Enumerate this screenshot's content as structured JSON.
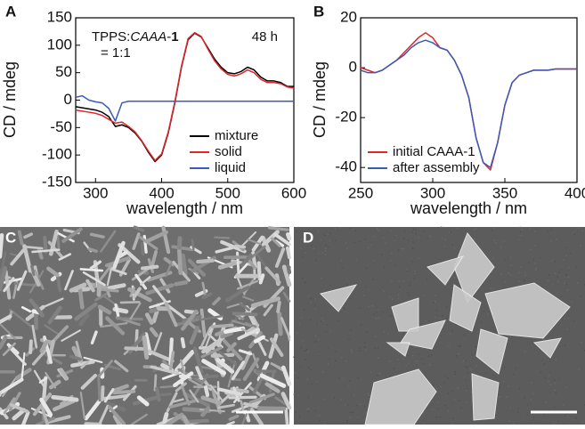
{
  "chart_data": [
    {
      "type": "line",
      "panel_label": "A",
      "x_label": "wavelength / nm",
      "y_label": "CD / mdeg",
      "annotation_parts": [
        "TPPS:",
        "CAAA",
        "-",
        "1"
      ],
      "annotation_line2": "= 1:1",
      "time_label": "48 h",
      "xlim": [
        270,
        600
      ],
      "xticks": [
        300,
        400,
        500,
        600
      ],
      "ylim": [
        -150,
        150
      ],
      "yticks": [
        -150,
        -100,
        -50,
        0,
        50,
        100,
        150
      ],
      "legend": "lower-right",
      "x": [
        270,
        280,
        290,
        300,
        310,
        320,
        330,
        340,
        350,
        360,
        370,
        380,
        390,
        400,
        410,
        420,
        430,
        440,
        450,
        460,
        470,
        480,
        490,
        500,
        510,
        520,
        530,
        540,
        550,
        560,
        570,
        580,
        590,
        600
      ],
      "series": [
        {
          "name": "mixture",
          "color": "#000000",
          "values": [
            -12,
            -14,
            -16,
            -18,
            -22,
            -30,
            -48,
            -45,
            -50,
            -60,
            -75,
            -95,
            -112,
            -100,
            -60,
            -5,
            60,
            110,
            122,
            115,
            95,
            75,
            60,
            50,
            48,
            52,
            60,
            55,
            42,
            35,
            35,
            32,
            25,
            25
          ]
        },
        {
          "name": "solid",
          "color": "#e0262b",
          "values": [
            -18,
            -20,
            -22,
            -24,
            -28,
            -35,
            -42,
            -40,
            -48,
            -58,
            -74,
            -93,
            -110,
            -98,
            -58,
            -3,
            62,
            112,
            123,
            116,
            93,
            72,
            57,
            47,
            44,
            48,
            55,
            50,
            38,
            32,
            32,
            30,
            24,
            22
          ]
        },
        {
          "name": "liquid",
          "color": "#3a5bb5",
          "values": [
            5,
            8,
            0,
            -3,
            -5,
            -15,
            -38,
            -5,
            -2,
            -2,
            -2,
            -2,
            -2,
            -2,
            -2,
            -2,
            -2,
            -2,
            -2,
            -2,
            -2,
            -2,
            -2,
            -2,
            -2,
            -2,
            -2,
            -2,
            -2,
            -2,
            -2,
            -2,
            -2,
            -2
          ]
        }
      ]
    },
    {
      "type": "line",
      "panel_label": "B",
      "x_label": "wavelength / nm",
      "y_label": "CD / mdeg",
      "xlim": [
        250,
        400
      ],
      "xticks": [
        250,
        300,
        350,
        400
      ],
      "ylim": [
        -46,
        20
      ],
      "yticks": [
        -40,
        -20,
        0,
        20
      ],
      "legend": "lower-left",
      "x": [
        250,
        255,
        260,
        265,
        270,
        275,
        280,
        285,
        290,
        295,
        300,
        305,
        310,
        315,
        320,
        325,
        330,
        335,
        340,
        345,
        350,
        355,
        360,
        365,
        370,
        375,
        380,
        385,
        390,
        395,
        400
      ],
      "series": [
        {
          "name": "initial CAAA-1",
          "color": "#e0262b",
          "values": [
            0,
            -1,
            -2,
            -1,
            1,
            3,
            6,
            9,
            12,
            14,
            12,
            8,
            7,
            3,
            -3,
            -12,
            -28,
            -38,
            -41,
            -30,
            -15,
            -6,
            -3,
            -2,
            -1,
            -1,
            -1,
            -0.5,
            -0.5,
            -0.5,
            -0.5
          ]
        },
        {
          "name": "after assembly",
          "color": "#3a5bb5",
          "values": [
            -1,
            -2,
            -2,
            -1,
            1,
            3,
            5,
            8,
            10,
            11,
            10,
            8,
            7,
            3,
            -3,
            -12,
            -28,
            -38,
            -40,
            -30,
            -15,
            -6,
            -3,
            -2,
            -1,
            -1,
            -1,
            -0.5,
            -0.5,
            -0.5,
            -0.5
          ]
        }
      ]
    }
  ],
  "images": [
    {
      "label": "C"
    },
    {
      "label": "D"
    }
  ]
}
